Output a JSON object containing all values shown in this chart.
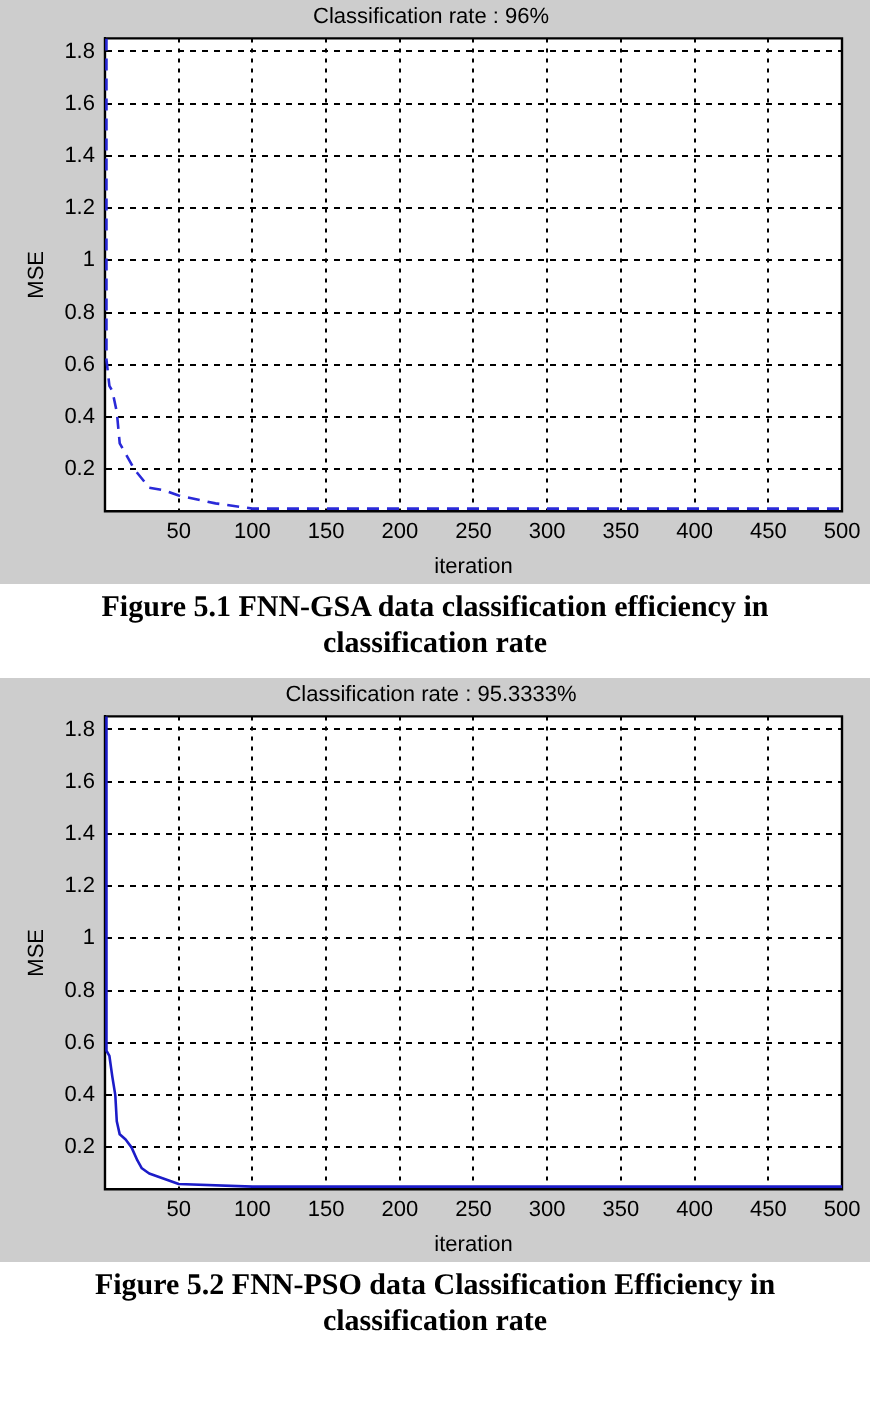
{
  "chart_data": [
    {
      "type": "line",
      "title": "Classification rate : 96%",
      "xlabel": "iteration",
      "ylabel": "MSE",
      "xlim": [
        0,
        500
      ],
      "ylim": [
        0.04,
        1.85
      ],
      "xticks": [
        50,
        100,
        150,
        200,
        250,
        300,
        350,
        400,
        450,
        500
      ],
      "yticks": [
        0.2,
        0.4,
        0.6,
        0.8,
        1,
        1.2,
        1.4,
        1.6,
        1.8
      ],
      "grid": true,
      "line_style": "dashed",
      "series": [
        {
          "color": "#2a2ad8",
          "x": [
            1,
            1,
            3,
            5,
            8,
            10,
            14,
            20,
            30,
            40,
            50,
            75,
            100,
            200,
            300,
            400,
            500
          ],
          "values": [
            1.85,
            0.62,
            0.52,
            0.5,
            0.42,
            0.3,
            0.26,
            0.2,
            0.13,
            0.12,
            0.1,
            0.07,
            0.05,
            0.05,
            0.05,
            0.05,
            0.05
          ]
        }
      ],
      "annotations": [
        "Figure 5.1 FNN-GSA data classification efficiency in classification rate"
      ]
    },
    {
      "type": "line",
      "title": "Classification rate : 95.3333%",
      "xlabel": "iteration",
      "ylabel": "MSE",
      "xlim": [
        0,
        500
      ],
      "ylim": [
        0.04,
        1.85
      ],
      "xticks": [
        50,
        100,
        150,
        200,
        250,
        300,
        350,
        400,
        450,
        500
      ],
      "yticks": [
        0.2,
        0.4,
        0.6,
        0.8,
        1,
        1.2,
        1.4,
        1.6,
        1.8
      ],
      "grid": true,
      "line_style": "solid",
      "series": [
        {
          "color": "#1c1cc8",
          "x": [
            1,
            1,
            3,
            5,
            7,
            8,
            10,
            14,
            18,
            22,
            25,
            30,
            40,
            50,
            100,
            200,
            300,
            400,
            500
          ],
          "values": [
            1.85,
            0.57,
            0.55,
            0.47,
            0.4,
            0.3,
            0.25,
            0.23,
            0.2,
            0.15,
            0.12,
            0.1,
            0.08,
            0.06,
            0.05,
            0.05,
            0.05,
            0.05,
            0.05
          ]
        }
      ],
      "annotations": [
        "Figure 5.2 FNN-PSO data Classification Efficiency in classification rate"
      ]
    }
  ]
}
